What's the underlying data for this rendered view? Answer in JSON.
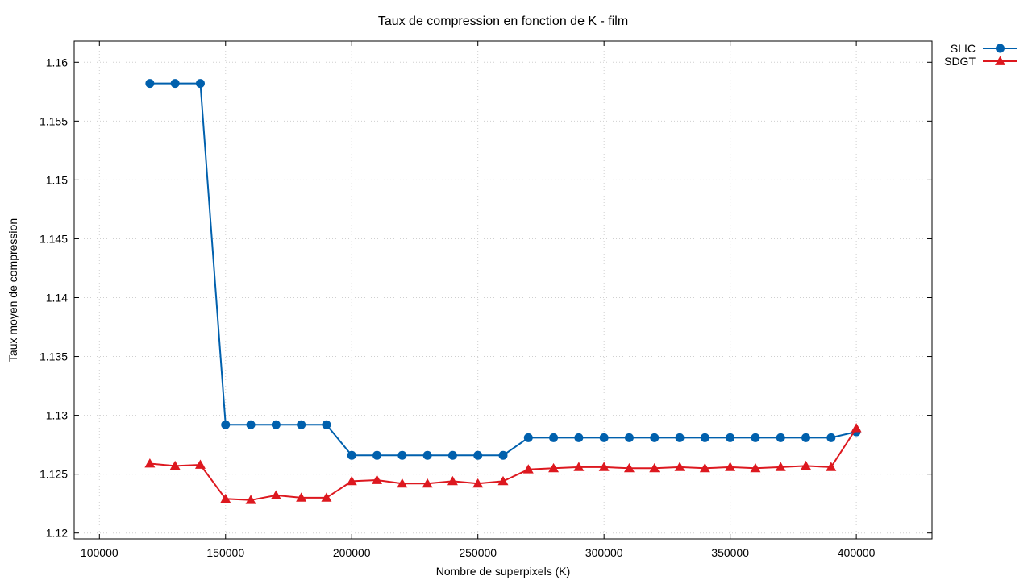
{
  "chart_data": {
    "type": "line",
    "title": "Taux de compression en fonction de K - film",
    "xlabel": "Nombre de superpixels (K)",
    "ylabel": "Taux moyen de compression",
    "xlim": [
      90000,
      430000
    ],
    "ylim": [
      1.1195,
      1.1618
    ],
    "xticks": [
      100000,
      150000,
      200000,
      250000,
      300000,
      350000,
      400000
    ],
    "xtick_labels": [
      "100000",
      "150000",
      "200000",
      "250000",
      "300000",
      "350000",
      "400000"
    ],
    "yticks": [
      1.12,
      1.125,
      1.13,
      1.135,
      1.14,
      1.145,
      1.15,
      1.155,
      1.16
    ],
    "ytick_labels": [
      "1.12",
      "1.125",
      "1.13",
      "1.135",
      "1.14",
      "1.145",
      "1.15",
      "1.155",
      "1.16"
    ],
    "grid": true,
    "legend_position": "outside-top-right",
    "x": [
      120000,
      130000,
      140000,
      150000,
      160000,
      170000,
      180000,
      190000,
      200000,
      210000,
      220000,
      230000,
      240000,
      250000,
      260000,
      270000,
      280000,
      290000,
      300000,
      310000,
      320000,
      330000,
      340000,
      350000,
      360000,
      370000,
      380000,
      390000,
      400000
    ],
    "series": [
      {
        "name": "SLIC",
        "color": "#0060ad",
        "marker": "circle",
        "values": [
          1.1582,
          1.1582,
          1.1582,
          1.1292,
          1.1292,
          1.1292,
          1.1292,
          1.1292,
          1.1266,
          1.1266,
          1.1266,
          1.1266,
          1.1266,
          1.1266,
          1.1266,
          1.1281,
          1.1281,
          1.1281,
          1.1281,
          1.1281,
          1.1281,
          1.1281,
          1.1281,
          1.1281,
          1.1281,
          1.1281,
          1.1281,
          1.1281,
          1.1286
        ]
      },
      {
        "name": "SDGT",
        "color": "#dd181f",
        "marker": "triangle",
        "values": [
          1.1259,
          1.1257,
          1.1258,
          1.1229,
          1.1228,
          1.1232,
          1.123,
          1.123,
          1.1244,
          1.1245,
          1.1242,
          1.1242,
          1.1244,
          1.1242,
          1.1244,
          1.1254,
          1.1255,
          1.1256,
          1.1256,
          1.1255,
          1.1255,
          1.1256,
          1.1255,
          1.1256,
          1.1255,
          1.1256,
          1.1257,
          1.1256,
          1.1289
        ]
      }
    ]
  }
}
